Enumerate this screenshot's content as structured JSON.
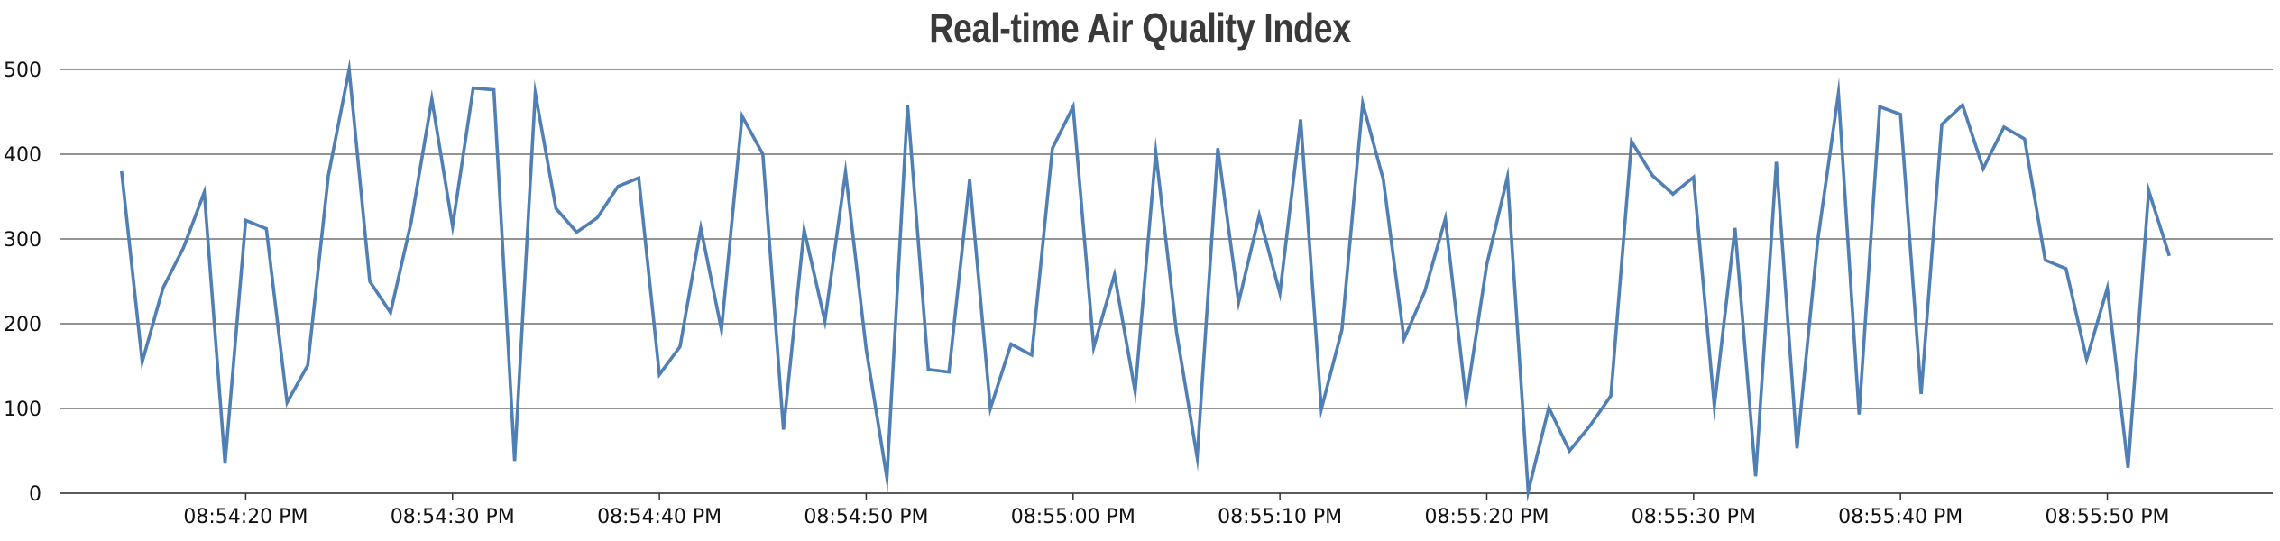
{
  "chart_data": {
    "type": "line",
    "title": "Real-time Air Quality Index",
    "xlabel": "",
    "ylabel": "",
    "ylim": [
      0,
      500
    ],
    "yticks": [
      "0",
      "100",
      "200",
      "300",
      "400",
      "500"
    ],
    "xlim": [
      "08:54:11 PM",
      "08:55:58 PM"
    ],
    "xticks": [
      "08:54:20 PM",
      "08:54:30 PM",
      "08:54:40 PM",
      "08:54:50 PM",
      "08:55:00 PM",
      "08:55:10 PM",
      "08:55:20 PM",
      "08:55:30 PM",
      "08:55:40 PM",
      "08:55:50 PM"
    ],
    "grid": true,
    "line_color": "#4f7fb4",
    "x_start": "08:54:14 PM",
    "x_step_seconds": 1,
    "values": [
      380,
      155,
      242,
      290,
      355,
      35,
      322,
      312,
      107,
      151,
      375,
      500,
      250,
      213,
      320,
      465,
      315,
      478,
      476,
      38,
      472,
      336,
      308,
      325,
      362,
      372,
      140,
      173,
      313,
      193,
      445,
      400,
      75,
      311,
      203,
      379,
      170,
      18,
      458,
      146,
      143,
      370,
      100,
      176,
      163,
      407,
      456,
      172,
      258,
      120,
      402,
      190,
      42,
      407,
      225,
      328,
      236,
      441,
      99,
      193,
      460,
      370,
      182,
      238,
      324,
      109,
      270,
      373,
      2,
      101,
      50,
      80,
      115,
      415,
      375,
      353,
      373,
      103,
      313,
      20,
      391,
      53,
      298,
      472,
      93,
      456,
      447,
      117,
      435,
      458,
      383,
      432,
      418,
      275,
      265,
      158,
      242,
      30,
      357,
      280
    ]
  }
}
